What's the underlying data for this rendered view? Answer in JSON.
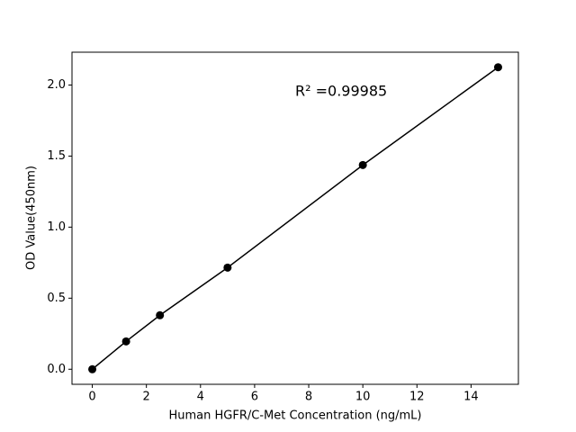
{
  "chart_data": {
    "type": "line",
    "x_label": "Human HGFR/C-Met Concentration (ng/mL)",
    "y_label": "OD Value(450nm)",
    "annotation": "R² =0.99985",
    "x": [
      0,
      1.25,
      2.5,
      5,
      10,
      15
    ],
    "series": [
      {
        "color": "#000000",
        "values": [
          0,
          0.196,
          0.38,
          0.715,
          1.437,
          2.125
        ]
      }
    ],
    "xlim": [
      -0.75,
      15.75
    ],
    "xticks": [
      0,
      2,
      4,
      6,
      8,
      10,
      12,
      14
    ],
    "ylim": [
      -0.106,
      2.231
    ],
    "yticks": [
      {
        "value": 0,
        "label": "0.0"
      },
      {
        "value": 0.5,
        "label": "0.5"
      },
      {
        "value": 1,
        "label": "1.0"
      },
      {
        "value": 1.5,
        "label": "1.5"
      },
      {
        "value": 2,
        "label": "2.0"
      }
    ],
    "grid": false
  }
}
